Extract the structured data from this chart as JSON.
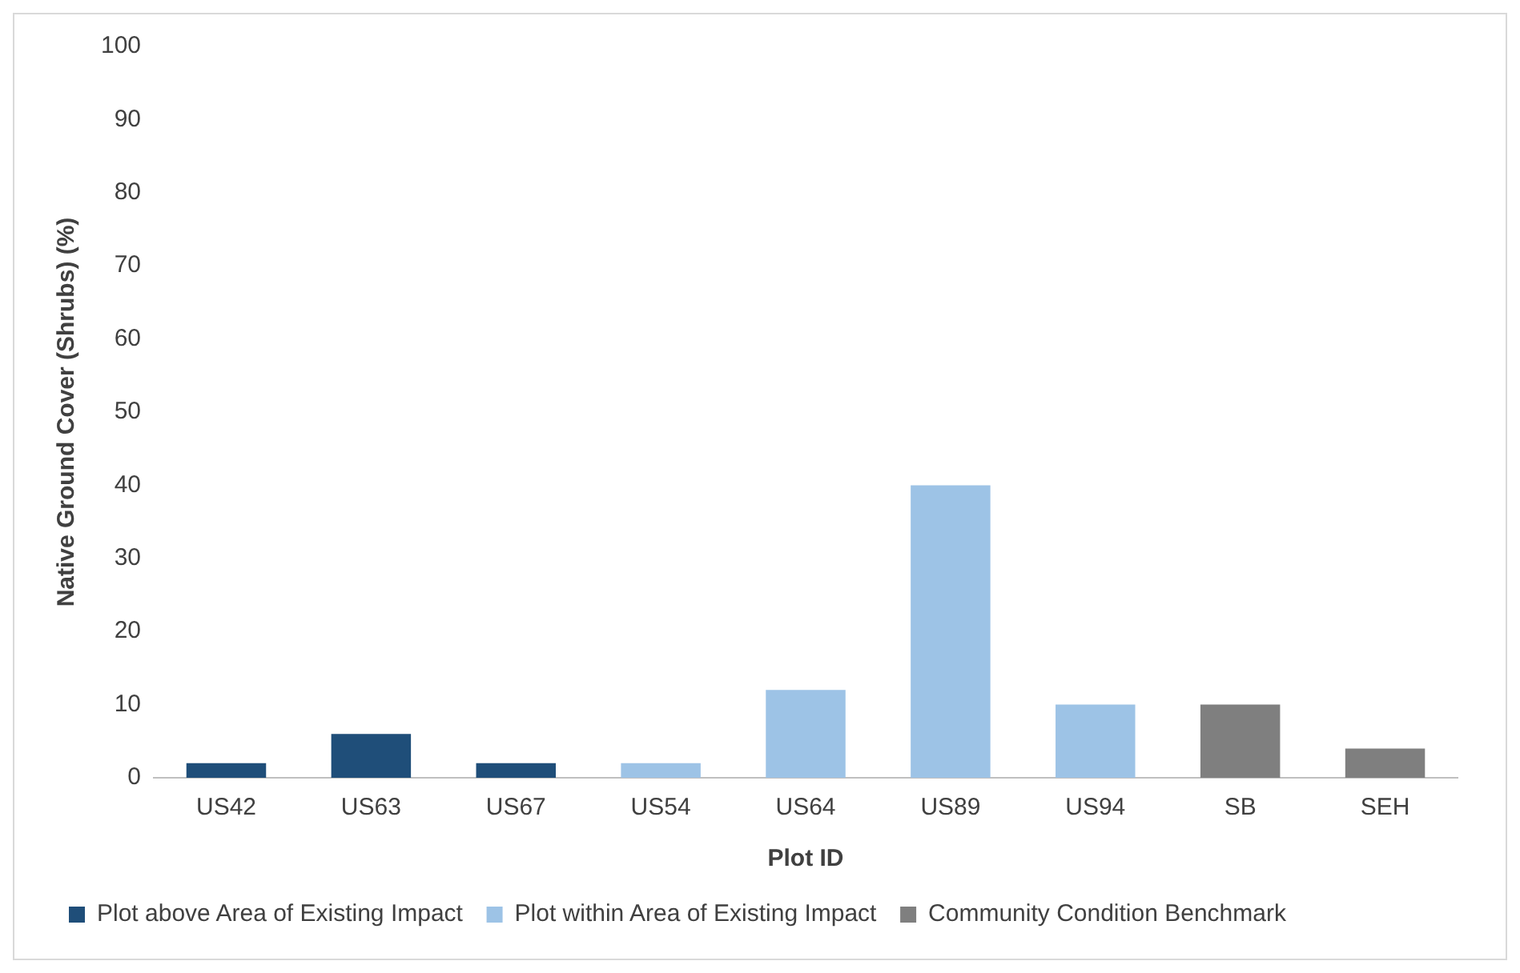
{
  "chart_data": {
    "type": "bar",
    "xlabel": "Plot ID",
    "ylabel": "Native Ground Cover (Shrubs) (%)",
    "categories": [
      "US42",
      "US63",
      "US67",
      "US54",
      "US64",
      "US89",
      "US94",
      "SB",
      "SEH"
    ],
    "series": [
      {
        "name": "Plot above Area of Existing Impact",
        "color": "#1f4e79",
        "values": [
          2,
          6,
          2,
          null,
          null,
          null,
          null,
          null,
          null
        ]
      },
      {
        "name": "Plot within Area of Existing Impact",
        "color": "#9dc3e6",
        "values": [
          null,
          null,
          null,
          2,
          12,
          40,
          10,
          null,
          null
        ]
      },
      {
        "name": "Community Condition Benchmark",
        "color": "#7f7f7f",
        "values": [
          null,
          null,
          null,
          null,
          null,
          null,
          null,
          10,
          4
        ]
      }
    ],
    "ylim": [
      0,
      100
    ],
    "yticks": [
      0,
      10,
      20,
      30,
      40,
      50,
      60,
      70,
      80,
      90,
      100
    ],
    "grid": false,
    "legend": "bottom"
  }
}
